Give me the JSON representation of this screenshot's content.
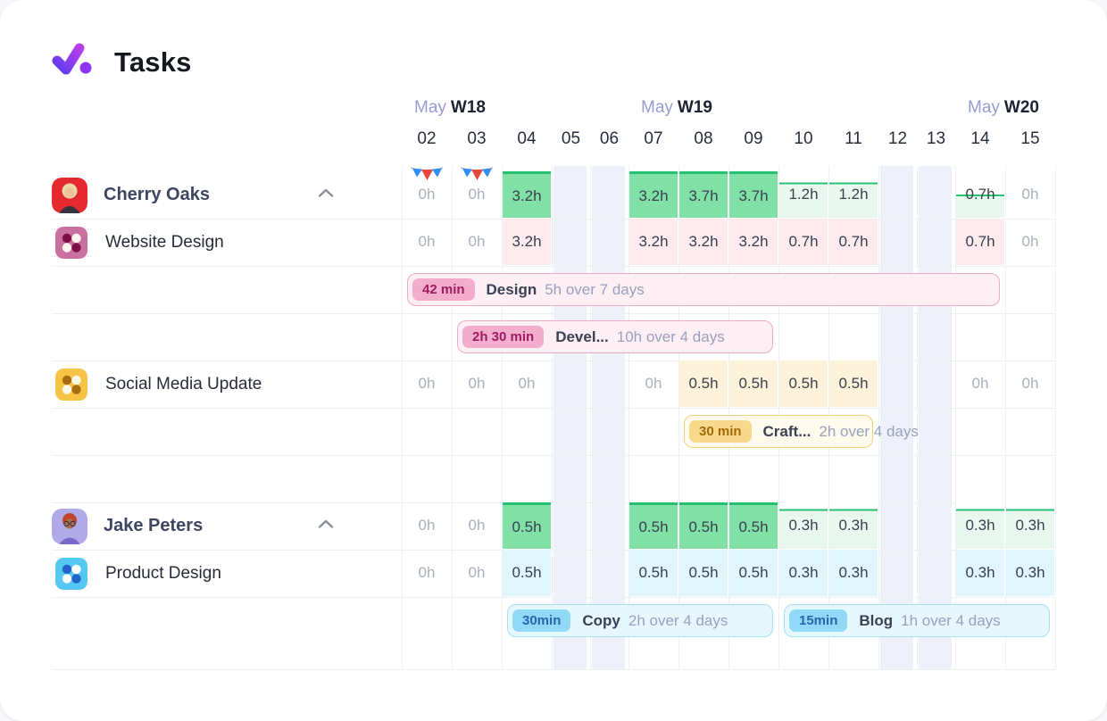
{
  "app": {
    "title": "Tasks"
  },
  "palette": {
    "brand_purple": "#7b3bf0",
    "capacity_green": "#27c173",
    "capacity_green_fill": "#80e0a6",
    "capacity_green_light": "#e9f8ef",
    "project_pink": "#fdebee",
    "project_yellow": "#fdf3da",
    "project_blue": "#e1f5fc",
    "weekend_band": "#eef1fa",
    "zero_text": "#a9b0bd",
    "value_text": "#39404e",
    "duration_text": "#99a1bd"
  },
  "timeline": {
    "weeks": [
      {
        "month": "May",
        "week": "W18",
        "startCol": 0
      },
      {
        "month": "May",
        "week": "W19",
        "startCol": 5
      },
      {
        "month": "May",
        "week": "W20",
        "startCol": 12
      }
    ],
    "days": [
      "02",
      "03",
      "04",
      "05",
      "06",
      "07",
      "08",
      "09",
      "10",
      "11",
      "12",
      "13",
      "14",
      "15"
    ],
    "weekend_cols": [
      3,
      4,
      10,
      11
    ],
    "holiday_cols": [
      0,
      1
    ]
  },
  "rows": [
    {
      "kind": "person",
      "name": "Cherry Oaks",
      "avatar": "cherry",
      "collapsed": false,
      "cells": [
        {
          "v": "0h",
          "t": "zero",
          "flag": true
        },
        {
          "v": "0h",
          "t": "zero",
          "flag": true
        },
        {
          "v": "3.2h",
          "t": "green"
        },
        {
          "t": "off"
        },
        {
          "t": "off"
        },
        {
          "v": "3.2h",
          "t": "green"
        },
        {
          "v": "3.7h",
          "t": "green"
        },
        {
          "v": "3.7h",
          "t": "green"
        },
        {
          "v": "1.2h",
          "t": "gpart",
          "line": 24
        },
        {
          "v": "1.2h",
          "t": "gpart",
          "line": 24
        },
        {
          "t": "off"
        },
        {
          "t": "off"
        },
        {
          "v": "0.7h",
          "t": "gpart",
          "line": 50
        },
        {
          "v": "0h",
          "t": "zero"
        }
      ]
    },
    {
      "kind": "project",
      "name": "Website Design",
      "icon": "pink",
      "cells": [
        {
          "v": "0h",
          "t": "zero"
        },
        {
          "v": "0h",
          "t": "zero"
        },
        {
          "v": "3.2h",
          "t": "pink"
        },
        {
          "t": "off"
        },
        {
          "t": "off"
        },
        {
          "v": "3.2h",
          "t": "pink"
        },
        {
          "v": "3.2h",
          "t": "pink"
        },
        {
          "v": "3.2h",
          "t": "pink"
        },
        {
          "v": "0.7h",
          "t": "pink"
        },
        {
          "v": "0.7h",
          "t": "pink"
        },
        {
          "t": "off"
        },
        {
          "t": "off"
        },
        {
          "v": "0.7h",
          "t": "pink"
        },
        {
          "v": "0h",
          "t": "zero"
        }
      ]
    },
    {
      "kind": "bars",
      "bars": [
        {
          "badge": "42 min",
          "label": "Design",
          "duration": "5h over 7 days",
          "theme": "pinkT",
          "startCol": 0,
          "endCol": 12
        }
      ]
    },
    {
      "kind": "bars",
      "bars": [
        {
          "badge": "2h 30 min",
          "label": "Devel...",
          "duration": "10h over 4 days",
          "theme": "pinkT",
          "startCol": 1,
          "endCol": 7
        }
      ]
    },
    {
      "kind": "project",
      "name": "Social Media Update",
      "icon": "yellow",
      "cells": [
        {
          "v": "0h",
          "t": "zero"
        },
        {
          "v": "0h",
          "t": "zero"
        },
        {
          "v": "0h",
          "t": "zero"
        },
        {
          "t": "off"
        },
        {
          "t": "off"
        },
        {
          "v": "0h",
          "t": "zero"
        },
        {
          "v": "0.5h",
          "t": "yellow"
        },
        {
          "v": "0.5h",
          "t": "yellow"
        },
        {
          "v": "0.5h",
          "t": "yellow"
        },
        {
          "v": "0.5h",
          "t": "yellow"
        },
        {
          "t": "off"
        },
        {
          "t": "off"
        },
        {
          "v": "0h",
          "t": "zero"
        },
        {
          "v": "0h",
          "t": "zero"
        }
      ]
    },
    {
      "kind": "bars",
      "bars": [
        {
          "badge": "30 min",
          "label": "Craft...",
          "duration": "2h over 4 days",
          "theme": "yellowT",
          "startCol": 6,
          "endCol": 9
        }
      ]
    },
    {
      "kind": "spacer"
    },
    {
      "kind": "person",
      "name": "Jake Peters",
      "avatar": "jake",
      "collapsed": false,
      "cells": [
        {
          "v": "0h",
          "t": "zero"
        },
        {
          "v": "0h",
          "t": "zero"
        },
        {
          "v": "0.5h",
          "t": "green"
        },
        {
          "t": "off"
        },
        {
          "t": "off"
        },
        {
          "v": "0.5h",
          "t": "green"
        },
        {
          "v": "0.5h",
          "t": "green"
        },
        {
          "v": "0.5h",
          "t": "green"
        },
        {
          "v": "0.3h",
          "t": "gpart",
          "line": 14
        },
        {
          "v": "0.3h",
          "t": "gpart",
          "line": 14
        },
        {
          "t": "off"
        },
        {
          "t": "off"
        },
        {
          "v": "0.3h",
          "t": "gpart",
          "line": 14
        },
        {
          "v": "0.3h",
          "t": "gpart",
          "line": 14
        }
      ]
    },
    {
      "kind": "project",
      "name": "Product Design",
      "icon": "blue",
      "cells": [
        {
          "v": "0h",
          "t": "zero"
        },
        {
          "v": "0h",
          "t": "zero"
        },
        {
          "v": "0.5h",
          "t": "blue"
        },
        {
          "t": "off"
        },
        {
          "t": "off"
        },
        {
          "v": "0.5h",
          "t": "blue"
        },
        {
          "v": "0.5h",
          "t": "blue"
        },
        {
          "v": "0.5h",
          "t": "blue"
        },
        {
          "v": "0.3h",
          "t": "blue"
        },
        {
          "v": "0.3h",
          "t": "blue"
        },
        {
          "t": "off"
        },
        {
          "t": "off"
        },
        {
          "v": "0.3h",
          "t": "blue"
        },
        {
          "v": "0.3h",
          "t": "blue"
        }
      ]
    },
    {
      "kind": "bars",
      "bars": [
        {
          "badge": "30min",
          "label": "Copy",
          "duration": "2h over 4 days",
          "theme": "blueT",
          "startCol": 2,
          "endCol": 7
        },
        {
          "badge": "15min",
          "label": "Blog",
          "duration": "1h over 4 days",
          "theme": "blueT",
          "startCol": 8,
          "endCol": 13
        }
      ]
    }
  ]
}
